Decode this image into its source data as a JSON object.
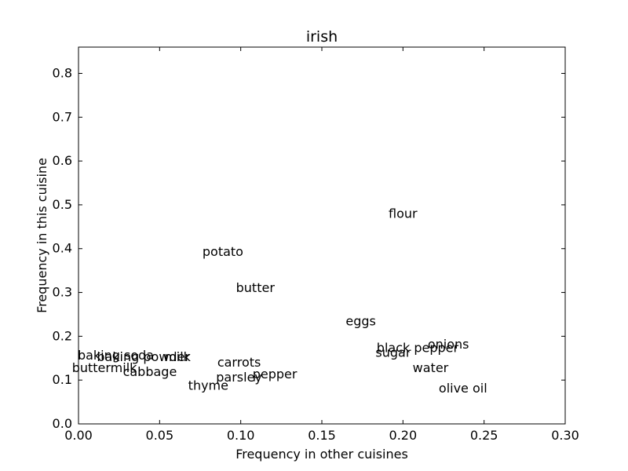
{
  "chart_data": {
    "type": "scatter",
    "title": "irish",
    "xlabel": "Frequency in other cuisines",
    "ylabel": "Frequency in this cuisine",
    "xlim": [
      0.0,
      0.3
    ],
    "ylim": [
      0.0,
      0.86
    ],
    "xticks": [
      "0.00",
      "0.05",
      "0.10",
      "0.15",
      "0.20",
      "0.25",
      "0.30"
    ],
    "yticks": [
      "0.0",
      "0.1",
      "0.2",
      "0.3",
      "0.4",
      "0.5",
      "0.6",
      "0.7",
      "0.8"
    ],
    "grid": false,
    "points": [
      {
        "label": "flour",
        "x": 0.2,
        "y": 0.479
      },
      {
        "label": "potato",
        "x": 0.089,
        "y": 0.392
      },
      {
        "label": "butter",
        "x": 0.109,
        "y": 0.31
      },
      {
        "label": "eggs",
        "x": 0.174,
        "y": 0.234
      },
      {
        "label": "onions",
        "x": 0.228,
        "y": 0.181
      },
      {
        "label": "black pepper",
        "x": 0.209,
        "y": 0.173
      },
      {
        "label": "sugar",
        "x": 0.194,
        "y": 0.162
      },
      {
        "label": "water",
        "x": 0.217,
        "y": 0.127
      },
      {
        "label": "olive oil",
        "x": 0.237,
        "y": 0.081
      },
      {
        "label": "baking soda",
        "x": 0.023,
        "y": 0.156
      },
      {
        "label": "baking powder",
        "x": 0.04,
        "y": 0.152
      },
      {
        "label": "milk",
        "x": 0.061,
        "y": 0.152
      },
      {
        "label": "buttermilk",
        "x": 0.016,
        "y": 0.127
      },
      {
        "label": "cabbage",
        "x": 0.044,
        "y": 0.118
      },
      {
        "label": "carrots",
        "x": 0.099,
        "y": 0.14
      },
      {
        "label": "pepper",
        "x": 0.121,
        "y": 0.113
      },
      {
        "label": "parsley",
        "x": 0.099,
        "y": 0.106
      },
      {
        "label": "thyme",
        "x": 0.08,
        "y": 0.087
      }
    ]
  }
}
